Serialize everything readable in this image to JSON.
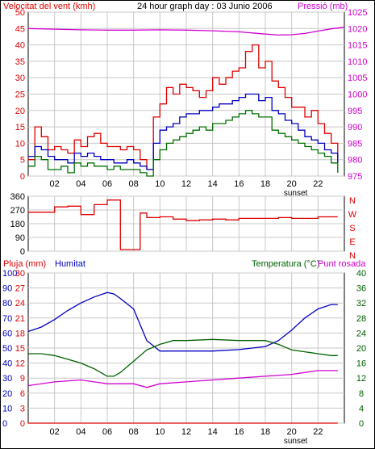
{
  "chart_data": [
    {
      "type": "line",
      "title": "24 hour graph day : 03 Junio 2006",
      "left_axis_label": "Velocitat del vent (kmh)",
      "right_axis_label": "Pressió (mb)",
      "ylim_left": [
        0,
        50
      ],
      "ylim_right": [
        975,
        1025
      ],
      "yticks_left": [
        "0",
        "5",
        "10",
        "15",
        "20",
        "25",
        "30",
        "35",
        "40",
        "45",
        "50"
      ],
      "yticks_right": [
        "975",
        "980",
        "985",
        "990",
        "995",
        "1000",
        "1005",
        "1010",
        "1015",
        "1020",
        "1025"
      ],
      "xlim": [
        0,
        24
      ],
      "xticks": [
        "02",
        "04",
        "06",
        "08",
        "10",
        "12",
        "14",
        "16",
        "18",
        "20",
        "22"
      ],
      "sunset_label": "sunset",
      "grid": true,
      "series": [
        {
          "role": "gust",
          "color": "#e00000",
          "x": [
            0,
            0.5,
            1,
            1.5,
            2,
            2.5,
            3,
            3.5,
            4,
            4.5,
            5,
            5.5,
            6,
            6.5,
            7,
            7.5,
            8,
            8.5,
            9,
            9.5,
            10,
            10.5,
            11,
            11.5,
            12,
            12.5,
            13,
            13.5,
            14,
            14.5,
            15,
            15.5,
            16,
            16.5,
            17,
            17.5,
            18,
            18.5,
            19,
            19.5,
            20,
            20.5,
            21,
            21.5,
            22,
            22.5,
            23,
            23.5
          ],
          "y": [
            5,
            15,
            12,
            8,
            9,
            8,
            7,
            11,
            9,
            12,
            13,
            10,
            9,
            9,
            8,
            9,
            8,
            5,
            2,
            18,
            22,
            27,
            25,
            28,
            27,
            26,
            24,
            26,
            30,
            28,
            30,
            32,
            33,
            38,
            40,
            33,
            35,
            29,
            27,
            24,
            21,
            21,
            18,
            20,
            16,
            13,
            10,
            4
          ]
        },
        {
          "role": "average",
          "color": "#0000c0",
          "x": [
            0,
            0.5,
            1,
            1.5,
            2,
            2.5,
            3,
            3.5,
            4,
            4.5,
            5,
            5.5,
            6,
            6.5,
            7,
            7.5,
            8,
            8.5,
            9,
            9.5,
            10,
            10.5,
            11,
            11.5,
            12,
            12.5,
            13,
            13.5,
            14,
            14.5,
            15,
            15.5,
            16,
            16.5,
            17,
            17.5,
            18,
            18.5,
            19,
            19.5,
            20,
            20.5,
            21,
            21.5,
            22,
            22.5,
            23,
            23.5
          ],
          "y": [
            6,
            9,
            8,
            6,
            5,
            5,
            4,
            7,
            6,
            7,
            6,
            5,
            5,
            4,
            4,
            5,
            4,
            3,
            2,
            10,
            14,
            15,
            16,
            18,
            19,
            19,
            20,
            20,
            21,
            22,
            22,
            23,
            24,
            25,
            25,
            23,
            24,
            20,
            19,
            17,
            16,
            14,
            12,
            11,
            10,
            8,
            7,
            4
          ]
        },
        {
          "role": "wind_min",
          "color": "#007000",
          "x": [
            0,
            0.5,
            1,
            1.5,
            2,
            2.5,
            3,
            3.5,
            4,
            4.5,
            5,
            5.5,
            6,
            6.5,
            7,
            7.5,
            8,
            8.5,
            9,
            9.5,
            10,
            10.5,
            11,
            11.5,
            12,
            12.5,
            13,
            13.5,
            14,
            14.5,
            15,
            15.5,
            16,
            16.5,
            17,
            17.5,
            18,
            18.5,
            19,
            19.5,
            20,
            20.5,
            21,
            21.5,
            22,
            22.5,
            23,
            23.5
          ],
          "y": [
            3,
            6,
            5,
            2,
            2,
            3,
            1,
            4,
            3,
            4,
            3,
            3,
            2,
            3,
            2,
            2,
            2,
            1,
            0,
            5,
            8,
            10,
            11,
            12,
            13,
            14,
            15,
            14,
            16,
            16,
            17,
            18,
            19,
            20,
            19,
            18,
            18,
            14,
            13,
            12,
            11,
            10,
            9,
            8,
            7,
            6,
            4,
            1
          ]
        },
        {
          "role": "pressure",
          "axis": "right",
          "color": "#d000d0",
          "x": [
            0,
            2,
            4,
            6,
            8,
            10,
            12,
            14,
            16,
            18,
            19,
            20,
            21,
            22,
            23,
            24
          ],
          "y": [
            1020,
            1019.8,
            1019.6,
            1019.5,
            1019.5,
            1019.6,
            1019.5,
            1019.3,
            1019,
            1018.3,
            1018,
            1018.1,
            1018.5,
            1019.2,
            1019.9,
            1020.4
          ]
        }
      ]
    },
    {
      "type": "line",
      "ylim": [
        0,
        360
      ],
      "yticks": [
        "0",
        "90",
        "180",
        "270",
        "360"
      ],
      "compass": [
        "N",
        "W",
        "S",
        "E",
        "N"
      ],
      "series": [
        {
          "role": "wind_direction",
          "color": "#e00000",
          "x": [
            0,
            1,
            2,
            3,
            4,
            5,
            6,
            6.5,
            7,
            7.2,
            7.5,
            8,
            8.5,
            9,
            10,
            11,
            12,
            13,
            14,
            15,
            16,
            17,
            18,
            19,
            20,
            21,
            22,
            23,
            23.5
          ],
          "y": [
            255,
            255,
            290,
            295,
            240,
            305,
            335,
            335,
            10,
            10,
            10,
            10,
            250,
            220,
            225,
            210,
            200,
            205,
            210,
            205,
            215,
            215,
            215,
            220,
            215,
            215,
            225,
            225,
            225
          ]
        }
      ]
    },
    {
      "type": "line",
      "left_axis_labels": [
        "Pluja (mm)",
        "Humitat"
      ],
      "right_axis_labels": [
        "Temperatura (°C)",
        "Punt rosada"
      ],
      "yticks_rain": [
        "0",
        "3",
        "6",
        "9",
        "12",
        "15",
        "18",
        "21",
        "24",
        "27",
        "30"
      ],
      "yticks_humidity": [
        "0",
        "10",
        "20",
        "30",
        "40",
        "50",
        "60",
        "70",
        "80",
        "90",
        "100"
      ],
      "yticks_temp": [
        "0",
        "4",
        "8",
        "12",
        "16",
        "20",
        "24",
        "28",
        "32",
        "36",
        "40"
      ],
      "ylim_rain": [
        0,
        30
      ],
      "ylim_humidity": [
        0,
        100
      ],
      "ylim_temp": [
        0,
        40
      ],
      "xlim": [
        0,
        24
      ],
      "xticks": [
        "02",
        "04",
        "06",
        "08",
        "10",
        "12",
        "14",
        "16",
        "18",
        "20",
        "22"
      ],
      "sunset_label": "sunset",
      "series": [
        {
          "role": "humidity",
          "axis": "humidity",
          "color": "#0000c0",
          "x": [
            0,
            1,
            2,
            3,
            4,
            5,
            6,
            6.5,
            7,
            8,
            9,
            10,
            12,
            14,
            16,
            18,
            19,
            20,
            21,
            22,
            23,
            23.5
          ],
          "y": [
            61,
            64,
            69,
            75,
            80,
            84,
            87,
            86,
            83,
            76,
            55,
            48,
            48,
            48,
            49,
            51,
            55,
            62,
            70,
            76,
            79,
            79
          ]
        },
        {
          "role": "temperature",
          "axis": "temp",
          "color": "#006000",
          "x": [
            0,
            1,
            2,
            3,
            4,
            5,
            6,
            6.5,
            7,
            8,
            9,
            10,
            11,
            12,
            14,
            16,
            18,
            19,
            20,
            22,
            23,
            23.5
          ],
          "y": [
            18.5,
            18.5,
            18,
            17,
            16,
            14.5,
            12.5,
            12.5,
            13.5,
            16.5,
            19.5,
            21,
            22,
            22,
            22.3,
            22,
            22,
            21,
            19.5,
            18.5,
            18,
            18
          ]
        },
        {
          "role": "dew_point",
          "axis": "temp",
          "color": "#d000d0",
          "x": [
            0,
            2,
            4,
            6,
            8,
            9,
            10,
            12,
            14,
            16,
            18,
            20,
            22,
            23.5
          ],
          "y": [
            10,
            11,
            11.5,
            10.5,
            10.5,
            9.5,
            10.5,
            11,
            11.5,
            12,
            12.5,
            13,
            14,
            14
          ]
        },
        {
          "role": "rain",
          "axis": "rain",
          "color": "#e00000",
          "x": [
            0,
            23.5
          ],
          "y": [
            0,
            0
          ]
        }
      ]
    }
  ]
}
